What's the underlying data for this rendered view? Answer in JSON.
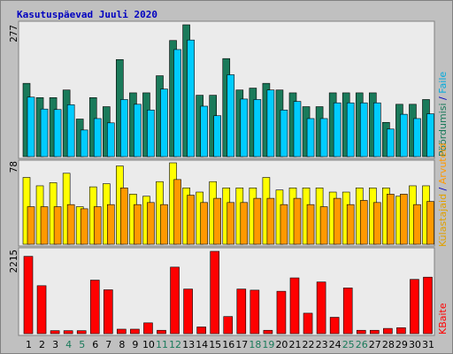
{
  "chart_data": [
    {
      "type": "bar",
      "title": "Kasutuspäevad Juuli 2020",
      "categories": [
        "1",
        "2",
        "3",
        "4",
        "5",
        "6",
        "7",
        "8",
        "9",
        "10",
        "11",
        "12",
        "13",
        "14",
        "15",
        "16",
        "17",
        "18",
        "19",
        "20",
        "21",
        "22",
        "23",
        "24",
        "25",
        "26",
        "27",
        "28",
        "29",
        "30",
        "31"
      ],
      "weekend_days": [
        "4",
        "5",
        "11",
        "12",
        "18",
        "19",
        "25",
        "26"
      ],
      "ylim": [
        0,
        277
      ],
      "ytick_label": "277",
      "series": [
        {
          "name": "Pöördumisi",
          "color": "#1a7a5a",
          "values": [
            154,
            124,
            124,
            140,
            79,
            124,
            105,
            204,
            134,
            134,
            170,
            244,
            277,
            129,
            129,
            206,
            140,
            144,
            154,
            140,
            134,
            105,
            105,
            134,
            134,
            134,
            134,
            72,
            110,
            110,
            120
          ]
        },
        {
          "name": "Faile",
          "color": "#00ccff",
          "values": [
            125,
            100,
            99,
            109,
            56,
            80,
            71,
            120,
            110,
            98,
            142,
            225,
            245,
            106,
            86,
            172,
            121,
            120,
            140,
            98,
            116,
            80,
            80,
            113,
            113,
            113,
            113,
            58,
            89,
            80,
            90
          ]
        }
      ]
    },
    {
      "type": "bar",
      "ylim": [
        0,
        78
      ],
      "ytick_label": "78",
      "series": [
        {
          "name": "Külastajaid",
          "color": "#ffff00",
          "values": [
            64,
            56,
            59,
            68,
            36,
            55,
            58,
            75,
            48,
            46,
            60,
            78,
            54,
            50,
            60,
            54,
            54,
            54,
            64,
            52,
            54,
            54,
            54,
            50,
            50,
            54,
            54,
            54,
            46,
            56,
            56
          ]
        },
        {
          "name": "Arvuteid",
          "color": "#ff9900",
          "values": [
            36,
            36,
            36,
            38,
            34,
            36,
            38,
            54,
            38,
            40,
            38,
            62,
            47,
            40,
            44,
            40,
            40,
            44,
            44,
            38,
            44,
            38,
            36,
            44,
            38,
            42,
            40,
            48,
            48,
            38,
            41
          ]
        }
      ]
    },
    {
      "type": "bar",
      "ylim": [
        0,
        2215
      ],
      "ytick_label": "2215",
      "series": [
        {
          "name": "KBaite",
          "color": "#ff0000",
          "values": [
            2080,
            1290,
            80,
            80,
            80,
            1440,
            1180,
            120,
            120,
            290,
            90,
            1790,
            1200,
            180,
            2215,
            460,
            1200,
            1170,
            90,
            1140,
            1500,
            550,
            1390,
            440,
            1230,
            90,
            90,
            140,
            160,
            1460,
            1520
          ]
        }
      ]
    }
  ],
  "legend": {
    "pageviews": "Pöördumisi",
    "files": "Faile",
    "visits": "Külastajaid",
    "sites": "Arvuteid",
    "kbytes": "KBaite",
    "separator": "/"
  }
}
